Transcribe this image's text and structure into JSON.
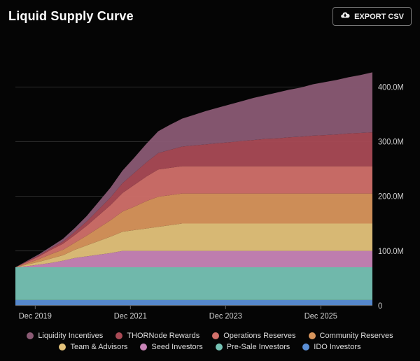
{
  "header": {
    "title": "Liquid Supply Curve",
    "export_label": "EXPORT CSV"
  },
  "chart": {
    "type": "area-stacked",
    "background_color": "#050505",
    "grid_color": "#2a2a2a",
    "axis_label_color": "#cfcfcf",
    "axis_fontsize": 11,
    "x_categories": [
      "Dec 2019",
      "Dec 2021",
      "Dec 2023",
      "Dec 2025"
    ],
    "x_positions_months": [
      5,
      29,
      53,
      77
    ],
    "x_range_months": [
      0,
      90
    ],
    "ylim": [
      0,
      480
    ],
    "ytick_step": 100,
    "ytick_labels": [
      "0",
      "100.0M",
      "200.0M",
      "300.0M",
      "400.0M"
    ],
    "ytick_values": [
      0,
      100,
      200,
      300,
      400
    ],
    "series_order_bottom_to_top": [
      "ido",
      "presale",
      "seed",
      "team",
      "community",
      "operations",
      "thornode",
      "liquidity"
    ],
    "series": {
      "ido": {
        "label": "IDO Investors",
        "color": "#5b8fd6",
        "values": [
          10,
          10,
          10,
          10,
          10,
          10,
          10,
          10,
          10,
          10,
          10,
          10,
          10,
          10,
          10,
          10,
          10,
          10,
          10,
          10,
          10,
          10,
          10,
          10,
          10,
          10,
          10,
          10,
          10,
          10,
          10
        ]
      },
      "presale": {
        "label": "Pre-Sale Investors",
        "color": "#76c2b4",
        "values": [
          60,
          60,
          60,
          60,
          60,
          60,
          60,
          60,
          60,
          60,
          60,
          60,
          60,
          60,
          60,
          60,
          60,
          60,
          60,
          60,
          60,
          60,
          60,
          60,
          60,
          60,
          60,
          60,
          60,
          60,
          60
        ]
      },
      "seed": {
        "label": "Seed Investors",
        "color": "#c884b7",
        "values": [
          0,
          2,
          5,
          8,
          12,
          17,
          20,
          23,
          26,
          30,
          30,
          30,
          30,
          30,
          30,
          30,
          30,
          30,
          30,
          30,
          30,
          30,
          30,
          30,
          30,
          30,
          30,
          30,
          30,
          30,
          30
        ]
      },
      "team": {
        "label": "Team & Advisors",
        "color": "#e3c27a",
        "values": [
          0,
          3,
          5,
          8,
          10,
          15,
          20,
          25,
          30,
          35,
          38,
          41,
          44,
          47,
          50,
          50,
          50,
          50,
          50,
          50,
          50,
          50,
          50,
          50,
          50,
          50,
          50,
          50,
          50,
          50,
          50
        ]
      },
      "community": {
        "label": "Community Reserves",
        "color": "#d8955c",
        "values": [
          0,
          2,
          5,
          8,
          10,
          13,
          18,
          24,
          30,
          37,
          43,
          50,
          55,
          55,
          55,
          55,
          55,
          55,
          55,
          55,
          55,
          55,
          55,
          55,
          55,
          55,
          55,
          55,
          55,
          55,
          55
        ]
      },
      "operations": {
        "label": "Operations Reserves",
        "color": "#d1706a",
        "values": [
          0,
          3,
          5,
          8,
          11,
          14,
          18,
          23,
          28,
          34,
          40,
          45,
          50,
          50,
          50,
          50,
          50,
          50,
          50,
          50,
          50,
          50,
          50,
          50,
          50,
          50,
          50,
          50,
          50,
          50,
          50
        ]
      },
      "thornode": {
        "label": "THORNode Rewards",
        "color": "#a94a55",
        "values": [
          0,
          1,
          2,
          3,
          4,
          6,
          8,
          11,
          14,
          18,
          22,
          26,
          30,
          33,
          36,
          38,
          40,
          42,
          44,
          46,
          48,
          50,
          51,
          53,
          54,
          56,
          57,
          58,
          60,
          61,
          62
        ]
      },
      "liquidity": {
        "label": "Liquidity Incentives",
        "color": "#8a5a74",
        "values": [
          0,
          1,
          2,
          3,
          5,
          7,
          10,
          14,
          18,
          23,
          28,
          34,
          40,
          46,
          51,
          56,
          61,
          65,
          69,
          73,
          77,
          80,
          84,
          87,
          90,
          94,
          97,
          100,
          103,
          106,
          110
        ]
      }
    },
    "x_values_months": [
      0,
      3,
      6,
      9,
      12,
      15,
      18,
      21,
      24,
      27,
      30,
      33,
      36,
      39,
      42,
      45,
      48,
      51,
      54,
      57,
      60,
      63,
      66,
      69,
      72,
      75,
      78,
      81,
      84,
      87,
      90
    ]
  },
  "legend": {
    "items": [
      {
        "key": "liquidity",
        "label": "Liquidity Incentives",
        "color": "#8a5a74"
      },
      {
        "key": "thornode",
        "label": "THORNode Rewards",
        "color": "#a94a55"
      },
      {
        "key": "operations",
        "label": "Operations Reserves",
        "color": "#d1706a"
      },
      {
        "key": "community",
        "label": "Community Reserves",
        "color": "#d8955c"
      },
      {
        "key": "team",
        "label": "Team & Advisors",
        "color": "#e3c27a"
      },
      {
        "key": "seed",
        "label": "Seed Investors",
        "color": "#c884b7"
      },
      {
        "key": "presale",
        "label": "Pre-Sale Investors",
        "color": "#76c2b4"
      },
      {
        "key": "ido",
        "label": "IDO Investors",
        "color": "#5b8fd6"
      }
    ]
  }
}
